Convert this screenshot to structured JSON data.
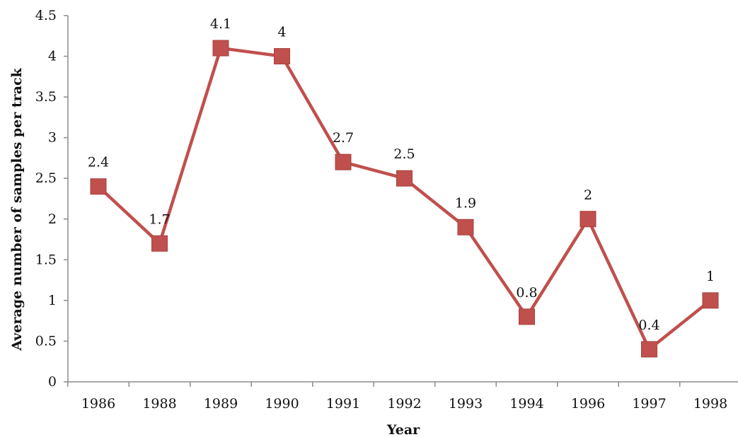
{
  "chart_data": {
    "type": "line",
    "categories": [
      "1986",
      "1988",
      "1989",
      "1990",
      "1991",
      "1992",
      "1993",
      "1994",
      "1996",
      "1997",
      "1998"
    ],
    "series": [
      {
        "values": [
          2.4,
          1.7,
          4.1,
          4,
          2.7,
          2.5,
          1.9,
          0.8,
          2,
          0.4,
          1
        ]
      }
    ],
    "data_labels": [
      "2.4",
      "1.7",
      "4.1",
      "4",
      "2.7",
      "2.5",
      "1.9",
      "0.8",
      "2",
      "0.4",
      "1"
    ],
    "xlabel": "Year",
    "ylabel": "Average number of samples per track",
    "ylim": [
      0,
      4.5
    ],
    "y_ticks": [
      "0",
      "0.5",
      "1",
      "1.5",
      "2",
      "2.5",
      "3",
      "3.5",
      "4",
      "4.5"
    ],
    "grid": false,
    "legend": "none",
    "marker": "square",
    "colors": {
      "series": "#c0504d",
      "axis": "#8c8c8c"
    }
  }
}
